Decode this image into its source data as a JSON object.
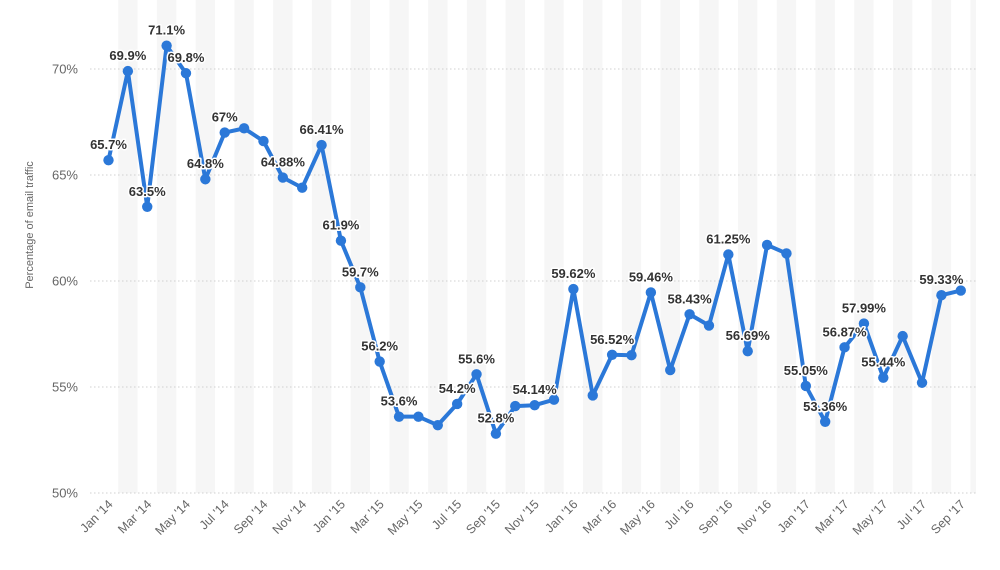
{
  "chart_data": {
    "type": "line",
    "title": "",
    "xlabel": "",
    "ylabel": "Percentage of email traffic",
    "ylim": [
      50,
      72
    ],
    "yticks": [
      50,
      55,
      60,
      65,
      70
    ],
    "ytick_labels": [
      "50%",
      "55%",
      "60%",
      "65%",
      "70%"
    ],
    "xtick_labels": [
      "Jan '14",
      "Mar '14",
      "May '14",
      "Jul '14",
      "Sep '14",
      "Nov '14",
      "Jan '15",
      "Mar '15",
      "May '15",
      "Jul '15",
      "Sep '15",
      "Nov '15",
      "Jan '16",
      "Mar '16",
      "May '16",
      "Jul '16",
      "Sep '16",
      "Nov '16",
      "Jan '17",
      "Mar '17",
      "May '17",
      "Jul '17",
      "Sep '17"
    ],
    "grid": true,
    "line_color": "#2b78d8",
    "band_color": "#f6f6f6",
    "grid_color": "#d0d0d0",
    "series": [
      {
        "values": [
          65.7,
          69.9,
          63.5,
          71.1,
          69.8,
          64.8,
          67.0,
          67.2,
          66.6,
          64.88,
          64.4,
          66.41,
          61.9,
          59.7,
          56.2,
          53.6,
          53.6,
          53.2,
          54.2,
          55.6,
          52.8,
          54.1,
          54.14,
          54.4,
          59.62,
          54.6,
          56.52,
          56.5,
          59.46,
          55.8,
          58.43,
          57.9,
          61.25,
          56.69,
          61.7,
          61.3,
          55.05,
          53.36,
          56.87,
          57.99,
          55.44,
          57.4,
          55.2,
          59.33,
          59.55
        ],
        "labels": [
          "65.7%",
          "69.9%",
          "63.5%",
          "71.1%",
          "69.8%",
          "64.8%",
          "67%",
          "",
          "",
          "64.88%",
          "",
          "66.41%",
          "61.9%",
          "59.7%",
          "56.2%",
          "53.6%",
          "",
          "",
          "54.2%",
          "55.6%",
          "52.8%",
          "",
          "54.14%",
          "",
          "59.62%",
          "",
          "56.52%",
          "",
          "59.46%",
          "",
          "58.43%",
          "",
          "61.25%",
          "56.69%",
          "",
          "",
          "55.05%",
          "53.36%",
          "56.87%",
          "57.99%",
          "55.44%",
          "",
          "",
          "59.33%",
          ""
        ]
      }
    ]
  }
}
